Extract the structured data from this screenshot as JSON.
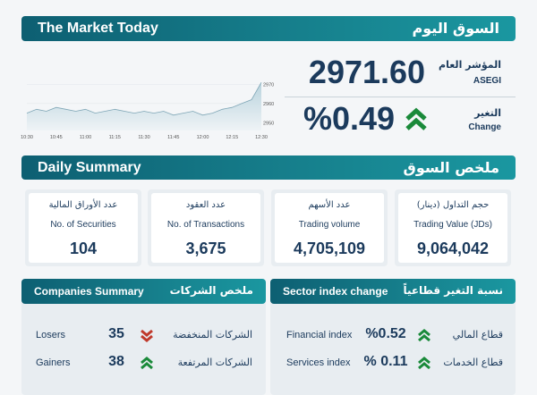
{
  "header": {
    "title_en": "The Market Today",
    "title_ar": "السوق اليوم"
  },
  "chart": {
    "type": "line",
    "xticks": [
      "10:30",
      "10:45",
      "11:00",
      "11:15",
      "11:30",
      "11:45",
      "12:00",
      "12:15",
      "12:30"
    ],
    "yticks": [
      2950,
      2960,
      2970
    ],
    "ylim": [
      2946,
      2972
    ],
    "values": [
      2955,
      2957,
      2956,
      2958,
      2957,
      2956,
      2957,
      2955,
      2956,
      2957,
      2956,
      2955,
      2956,
      2955,
      2956,
      2954,
      2955,
      2956,
      2954,
      2955,
      2957,
      2958,
      2960,
      2962,
      2971
    ]
  },
  "index": {
    "label_ar": "المؤشر العام",
    "label_en": "ASEGI",
    "value": "2971.60",
    "change_label_ar": "التغير",
    "change_label_en": "Change",
    "change": "%0.49"
  },
  "daily": {
    "title_en": "Daily Summary",
    "title_ar": "ملخص السوق",
    "cards": [
      {
        "label_ar": "عدد الأوراق المالية",
        "label_en": "No. of Securities",
        "value": "104"
      },
      {
        "label_ar": "عدد العقود",
        "label_en": "No. of Transactions",
        "value": "3,675"
      },
      {
        "label_ar": "عدد الأسهم",
        "label_en": "Trading volume",
        "value": "4,705,109"
      },
      {
        "label_ar": "حجم التداول (دينار)",
        "label_en": "Trading Value (JDs)",
        "value": "9,064,042"
      }
    ]
  },
  "companies": {
    "title_en": "Companies Summary",
    "title_ar": "ملخص الشركات",
    "rows": [
      {
        "label_en": "Losers",
        "value": "35",
        "label_ar": "الشركات المنخفضة"
      },
      {
        "label_en": "Gainers",
        "value": "38",
        "label_ar": "الشركات المرتفعة"
      }
    ]
  },
  "sectors": {
    "title_en": "Sector index change",
    "title_ar": "نسبة التغير قطاعياً",
    "rows": [
      {
        "label_en": "Financial index",
        "value": "%0.52",
        "label_ar": "قطاع المالي"
      },
      {
        "label_en": "Services index",
        "value": "% 0.11",
        "label_ar": "قطاع الخدمات"
      }
    ]
  }
}
